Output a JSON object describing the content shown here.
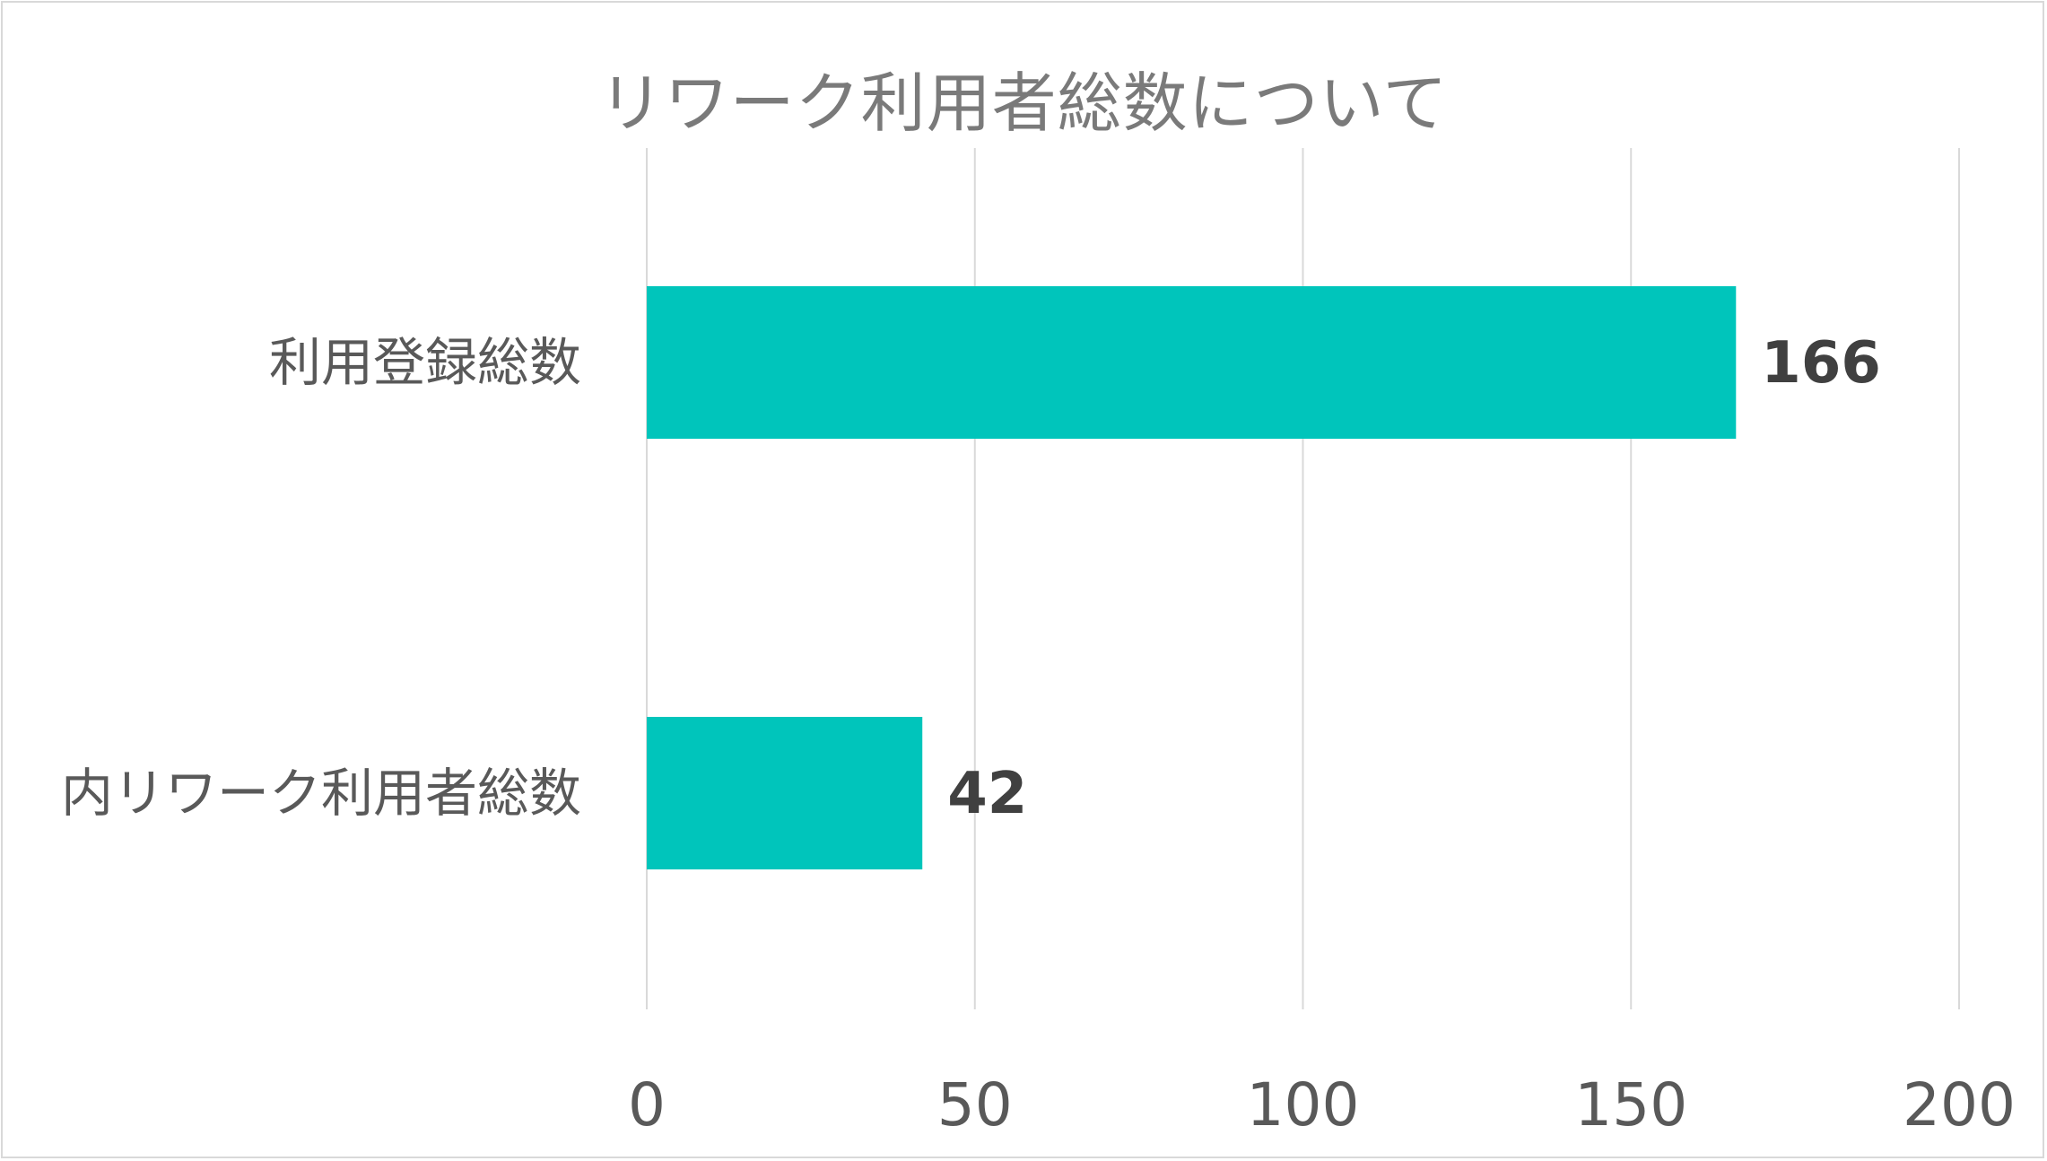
{
  "chart_data": {
    "type": "bar",
    "orientation": "horizontal",
    "title": "リワーク利用者総数について",
    "categories": [
      "利用登録総数",
      "内リワーク利用者総数"
    ],
    "values": [
      166,
      42
    ],
    "data_labels": [
      "166",
      "42"
    ],
    "xlim": [
      0,
      200
    ],
    "x_ticks": [
      0,
      50,
      100,
      150,
      200
    ],
    "x_tick_labels": [
      "0",
      "50",
      "100",
      "150",
      "200"
    ],
    "grid": true,
    "legend": "none",
    "bar_color": "#00c5bb"
  }
}
